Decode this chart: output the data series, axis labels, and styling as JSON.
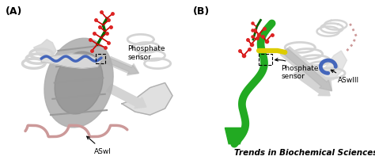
{
  "figsize": [
    4.74,
    2.03
  ],
  "dpi": 100,
  "background_color": "#ffffff",
  "panel_A_label": "(A)",
  "panel_B_label": "(B)",
  "journal_text": "Trends in Biochemical Sciences",
  "journal_fontsize": 7.5,
  "journal_color": "#000000",
  "label_fontsize": 9,
  "label_fontweight": "bold",
  "annotation_A1_text": "Phosphate\nsensor",
  "annotation_A2_text": "ASwI",
  "annotation_B1_text": "Phosphate\nsensor",
  "annotation_B2_text": "ASwIII",
  "gray_light": "#d4d4d4",
  "gray_mid": "#b0b0b0",
  "gray_dark": "#888888",
  "blue_color": "#4466bb",
  "green_color": "#22aa22",
  "red_color": "#cc4444",
  "pink_color": "#cc9999",
  "yellow_color": "#ddcc00"
}
